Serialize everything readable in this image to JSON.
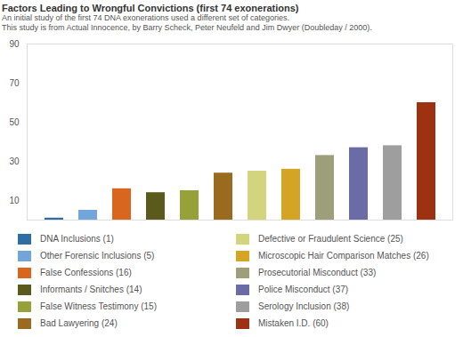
{
  "chart_data": {
    "type": "bar",
    "title": "Factors Leading to Wrongful Convictions (first 74 exonerations)",
    "subtitle": [
      "An initial study of the first 74 DNA exonerations used a different set of categories.",
      "This study is from Actual Innocence, by Barry Scheck, Peter Neufeld and Jim Dwyer (Doubleday / 2000)."
    ],
    "categories": [
      "DNA Inclusions (1)",
      "Other Forensic Inclusions (5)",
      "False Confessions (16)",
      "Informants / Snitches (14)",
      "False Witness Testimony (15)",
      "Bad Lawyering (24)",
      "Defective or Fraudulent Science (25)",
      "Microscopic Hair Comparison Matches (26)",
      "Prosecutorial Misconduct (33)",
      "Police Misconduct (37)",
      "Serology Inclusion (38)",
      "Mistaken I.D. (60)"
    ],
    "values": [
      1,
      5,
      16,
      14,
      15,
      24,
      25,
      26,
      33,
      37,
      38,
      60
    ],
    "colors": [
      "#2f6ea5",
      "#72a6da",
      "#d9661f",
      "#5a5a1c",
      "#97a13a",
      "#9a6a1e",
      "#d3d57c",
      "#d4a424",
      "#9c9f7a",
      "#6b6ca6",
      "#9e9e9e",
      "#9c3212"
    ],
    "ylim": [
      0,
      90
    ],
    "yticks": [
      10,
      30,
      50,
      70,
      90
    ],
    "grid": false,
    "tick_labels": "y",
    "legend": "bottom"
  }
}
